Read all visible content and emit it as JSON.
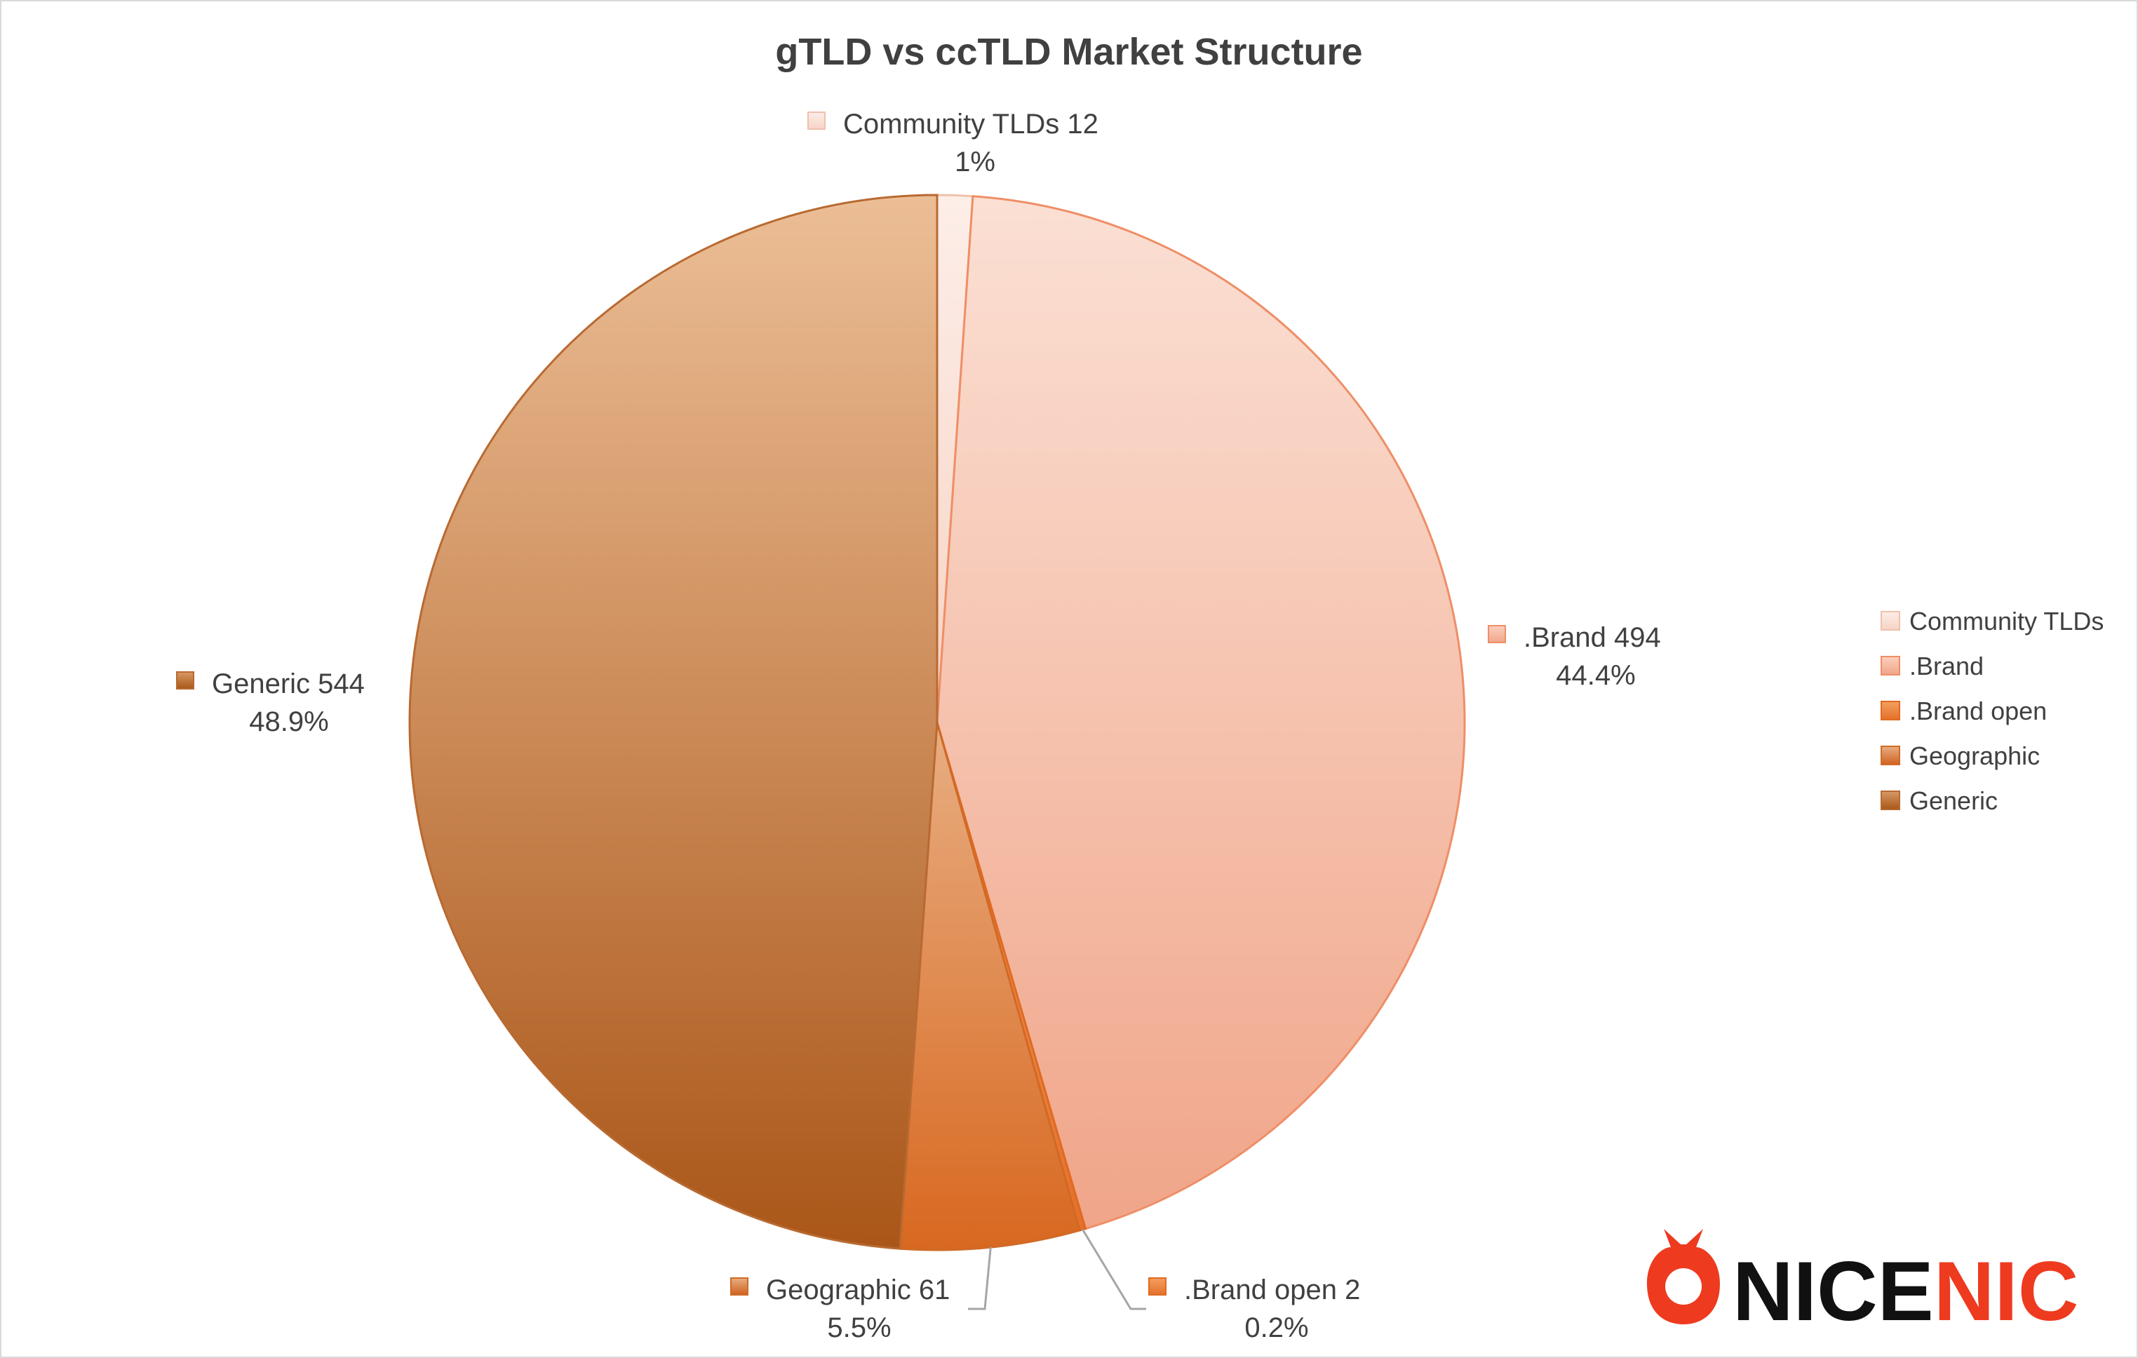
{
  "chart_data": {
    "type": "pie",
    "title": "gTLD vs ccTLD Market Structure",
    "slices": [
      {
        "name": "Community TLDs",
        "value": 12,
        "percent_label": "1%",
        "label": "Community TLDs 12",
        "color": "#fbe4dc"
      },
      {
        "name": ".Brand",
        "value": 494,
        "percent_label": "44.4%",
        "label": ".Brand 494",
        "color": "#f7c1aa"
      },
      {
        "name": ".Brand open",
        "value": 2,
        "percent_label": "0.2%",
        "label": ".Brand open 2",
        "color": "#ee8a47"
      },
      {
        "name": "Geographic",
        "value": 61,
        "percent_label": "5.5%",
        "label": "Geographic 61",
        "color": "#e08545"
      },
      {
        "name": "Generic",
        "value": 544,
        "percent_label": "48.9%",
        "label": "Generic 544",
        "color": "#cd8a58"
      }
    ],
    "legend": {
      "position": "right",
      "entries": [
        "Community TLDs",
        ".Brand",
        ".Brand open",
        "Geographic",
        "Generic"
      ]
    }
  },
  "logo": {
    "text_dark": "NICE",
    "text_accent": "NIC",
    "accent_color": "#ee3a1f",
    "dark_color": "#111111"
  },
  "colors": {
    "label_text": "#404040",
    "leader_line": "#a6a6a6"
  }
}
